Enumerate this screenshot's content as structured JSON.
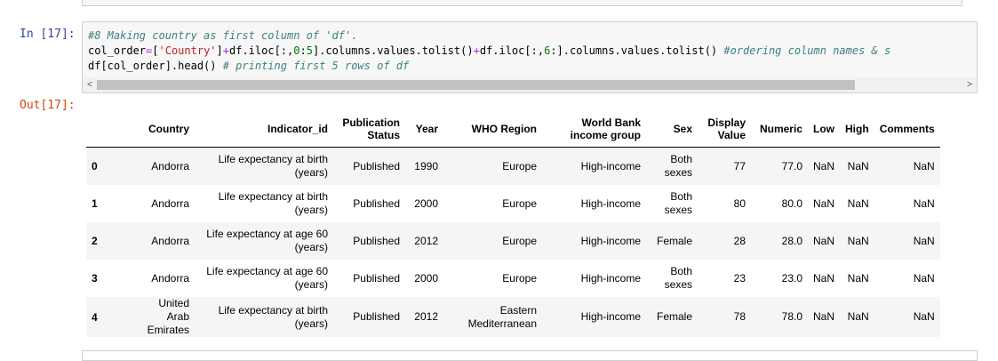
{
  "notebook": {
    "in_prompt": "In [17]:",
    "out_prompt": "Out[17]:",
    "code": {
      "line1_comment": "#8 Making country as first column of 'df'.",
      "line2": {
        "a": "col_order",
        "eq": "=",
        "b": "[",
        "str1": "'Country'",
        "c": "]",
        "plus1": "+",
        "d": "df.iloc[:,",
        "n0": "0",
        "e": ":",
        "n5": "5",
        "f": "].columns.values.tolist()",
        "plus2": "+",
        "g": "df.iloc[:,",
        "n6": "6",
        "h": ":].columns.values.tolist() ",
        "comment": "#ordering column names & s"
      },
      "line3": {
        "a": "df[col_order].head() ",
        "comment": "# printing first 5 rows of df"
      }
    },
    "scroll_left": "<",
    "scroll_right": ">"
  },
  "table": {
    "columns": [
      "",
      "Country",
      "Indicator_id",
      "Publication Status",
      "Year",
      "WHO Region",
      "World Bank income group",
      "Sex",
      "Display Value",
      "Numeric",
      "Low",
      "High",
      "Comments"
    ],
    "rows": [
      {
        "index": "0",
        "cells": [
          "Andorra",
          "Life expectancy at birth (years)",
          "Published",
          "1990",
          "Europe",
          "High-income",
          "Both sexes",
          "77",
          "77.0",
          "NaN",
          "NaN",
          "NaN"
        ]
      },
      {
        "index": "1",
        "cells": [
          "Andorra",
          "Life expectancy at birth (years)",
          "Published",
          "2000",
          "Europe",
          "High-income",
          "Both sexes",
          "80",
          "80.0",
          "NaN",
          "NaN",
          "NaN"
        ]
      },
      {
        "index": "2",
        "cells": [
          "Andorra",
          "Life expectancy at age 60 (years)",
          "Published",
          "2012",
          "Europe",
          "High-income",
          "Female",
          "28",
          "28.0",
          "NaN",
          "NaN",
          "NaN"
        ]
      },
      {
        "index": "3",
        "cells": [
          "Andorra",
          "Life expectancy at age 60 (years)",
          "Published",
          "2000",
          "Europe",
          "High-income",
          "Both sexes",
          "23",
          "23.0",
          "NaN",
          "NaN",
          "NaN"
        ]
      },
      {
        "index": "4",
        "cells": [
          "United Arab Emirates",
          "Life expectancy at birth (years)",
          "Published",
          "2012",
          "Eastern Mediterranean",
          "High-income",
          "Female",
          "78",
          "78.0",
          "NaN",
          "NaN",
          "NaN"
        ]
      }
    ]
  }
}
